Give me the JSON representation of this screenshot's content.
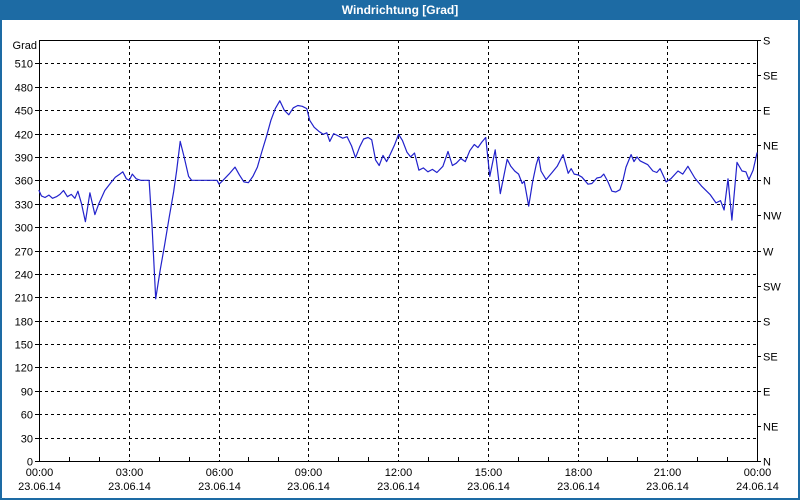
{
  "window": {
    "title": "Windrichtung [Grad]"
  },
  "colors": {
    "titlebar_bg": "#1d6ba4",
    "title_text": "#ffffff",
    "frame": "#1d6ba4",
    "plot_bg": "#ffffff",
    "grid": "#000000",
    "axis_text": "#000000",
    "line": "#2222cc"
  },
  "chart_data": {
    "type": "line",
    "title": "Windrichtung [Grad]",
    "ylabel_left": "Grad",
    "ylim": [
      0,
      540
    ],
    "y_left_tick_step": 30,
    "y_left_ticks": [
      510,
      480,
      450,
      420,
      390,
      360,
      330,
      300,
      270,
      240,
      210,
      180,
      150,
      120,
      90,
      60,
      30,
      0
    ],
    "y_right_ticks": [
      {
        "value": 540,
        "label": "S"
      },
      {
        "value": 495,
        "label": "SE"
      },
      {
        "value": 450,
        "label": "E"
      },
      {
        "value": 405,
        "label": "NE"
      },
      {
        "value": 360,
        "label": "N"
      },
      {
        "value": 315,
        "label": "NW"
      },
      {
        "value": 270,
        "label": "W"
      },
      {
        "value": 225,
        "label": "SW"
      },
      {
        "value": 180,
        "label": "S"
      },
      {
        "value": 135,
        "label": "SE"
      },
      {
        "value": 90,
        "label": "E"
      },
      {
        "value": 45,
        "label": "NE"
      },
      {
        "value": 0,
        "label": "N"
      }
    ],
    "xlim_hours": [
      0,
      24
    ],
    "x_minor_tick_hours": 1,
    "x_major_ticks": [
      {
        "hour": 0,
        "time": "00:00",
        "date": "23.06.14"
      },
      {
        "hour": 3,
        "time": "03:00",
        "date": "23.06.14"
      },
      {
        "hour": 6,
        "time": "06:00",
        "date": "23.06.14"
      },
      {
        "hour": 9,
        "time": "09:00",
        "date": "23.06.14"
      },
      {
        "hour": 12,
        "time": "12:00",
        "date": "23.06.14"
      },
      {
        "hour": 15,
        "time": "15:00",
        "date": "23.06.14"
      },
      {
        "hour": 18,
        "time": "18:00",
        "date": "23.06.14"
      },
      {
        "hour": 21,
        "time": "21:00",
        "date": "23.06.14"
      },
      {
        "hour": 24,
        "time": "00:00",
        "date": "24.06.14"
      }
    ],
    "grid": "dashed",
    "legend": "none",
    "series": [
      {
        "name": "Windrichtung",
        "unit": "Grad",
        "color": "#2222cc",
        "points": [
          [
            0.0,
            347
          ],
          [
            0.08,
            340
          ],
          [
            0.2,
            338
          ],
          [
            0.33,
            341
          ],
          [
            0.45,
            337
          ],
          [
            0.58,
            339
          ],
          [
            0.7,
            342
          ],
          [
            0.82,
            347
          ],
          [
            0.95,
            339
          ],
          [
            1.08,
            342
          ],
          [
            1.2,
            337
          ],
          [
            1.3,
            346
          ],
          [
            1.42,
            330
          ],
          [
            1.55,
            307
          ],
          [
            1.7,
            344
          ],
          [
            1.87,
            316
          ],
          [
            2.0,
            330
          ],
          [
            2.2,
            347
          ],
          [
            2.4,
            357
          ],
          [
            2.55,
            364
          ],
          [
            2.7,
            368
          ],
          [
            2.8,
            371
          ],
          [
            2.92,
            362
          ],
          [
            3.02,
            360
          ],
          [
            3.12,
            368
          ],
          [
            3.25,
            362
          ],
          [
            3.4,
            360
          ],
          [
            3.55,
            360
          ],
          [
            3.68,
            360
          ],
          [
            3.78,
            300
          ],
          [
            3.9,
            208
          ],
          [
            4.05,
            245
          ],
          [
            4.2,
            277
          ],
          [
            4.35,
            312
          ],
          [
            4.5,
            345
          ],
          [
            4.6,
            372
          ],
          [
            4.72,
            410
          ],
          [
            4.85,
            390
          ],
          [
            5.0,
            365
          ],
          [
            5.1,
            360
          ],
          [
            5.35,
            360
          ],
          [
            5.65,
            360
          ],
          [
            5.95,
            360
          ],
          [
            6.02,
            355
          ],
          [
            6.15,
            360
          ],
          [
            6.35,
            368
          ],
          [
            6.55,
            377
          ],
          [
            6.7,
            367
          ],
          [
            6.85,
            358
          ],
          [
            7.0,
            357
          ],
          [
            7.15,
            365
          ],
          [
            7.3,
            377
          ],
          [
            7.45,
            397
          ],
          [
            7.6,
            416
          ],
          [
            7.75,
            437
          ],
          [
            7.9,
            452
          ],
          [
            8.05,
            462
          ],
          [
            8.2,
            450
          ],
          [
            8.35,
            444
          ],
          [
            8.5,
            453
          ],
          [
            8.65,
            456
          ],
          [
            8.8,
            455
          ],
          [
            8.95,
            452
          ],
          [
            9.05,
            437
          ],
          [
            9.2,
            428
          ],
          [
            9.35,
            423
          ],
          [
            9.5,
            419
          ],
          [
            9.62,
            421
          ],
          [
            9.72,
            410
          ],
          [
            9.85,
            420
          ],
          [
            10.0,
            417
          ],
          [
            10.15,
            414
          ],
          [
            10.3,
            416
          ],
          [
            10.45,
            404
          ],
          [
            10.58,
            389
          ],
          [
            10.72,
            403
          ],
          [
            10.85,
            413
          ],
          [
            11.0,
            415
          ],
          [
            11.12,
            412
          ],
          [
            11.25,
            386
          ],
          [
            11.37,
            379
          ],
          [
            11.5,
            392
          ],
          [
            11.62,
            384
          ],
          [
            11.75,
            394
          ],
          [
            11.88,
            405
          ],
          [
            12.02,
            419
          ],
          [
            12.15,
            411
          ],
          [
            12.3,
            396
          ],
          [
            12.42,
            390
          ],
          [
            12.55,
            395
          ],
          [
            12.7,
            373
          ],
          [
            12.85,
            376
          ],
          [
            13.0,
            371
          ],
          [
            13.15,
            374
          ],
          [
            13.3,
            370
          ],
          [
            13.5,
            378
          ],
          [
            13.67,
            397
          ],
          [
            13.82,
            379
          ],
          [
            13.95,
            382
          ],
          [
            14.1,
            388
          ],
          [
            14.25,
            384
          ],
          [
            14.4,
            398
          ],
          [
            14.55,
            406
          ],
          [
            14.67,
            402
          ],
          [
            14.8,
            409
          ],
          [
            14.93,
            415
          ],
          [
            15.07,
            365
          ],
          [
            15.25,
            399
          ],
          [
            15.42,
            343
          ],
          [
            15.65,
            387
          ],
          [
            15.77,
            378
          ],
          [
            15.9,
            372
          ],
          [
            16.03,
            368
          ],
          [
            16.15,
            356
          ],
          [
            16.22,
            359
          ],
          [
            16.37,
            327
          ],
          [
            16.5,
            358
          ],
          [
            16.62,
            380
          ],
          [
            16.7,
            390
          ],
          [
            16.78,
            372
          ],
          [
            16.95,
            361
          ],
          [
            17.15,
            370
          ],
          [
            17.32,
            378
          ],
          [
            17.52,
            393
          ],
          [
            17.69,
            369
          ],
          [
            17.79,
            375
          ],
          [
            17.89,
            368
          ],
          [
            18.02,
            367
          ],
          [
            18.15,
            364
          ],
          [
            18.35,
            355
          ],
          [
            18.48,
            356
          ],
          [
            18.65,
            363
          ],
          [
            18.78,
            364
          ],
          [
            18.88,
            368
          ],
          [
            19.02,
            358
          ],
          [
            19.15,
            346
          ],
          [
            19.28,
            345
          ],
          [
            19.42,
            348
          ],
          [
            19.52,
            360
          ],
          [
            19.62,
            377
          ],
          [
            19.79,
            393
          ],
          [
            19.89,
            384
          ],
          [
            19.99,
            390
          ],
          [
            20.09,
            385
          ],
          [
            20.35,
            380
          ],
          [
            20.52,
            372
          ],
          [
            20.65,
            370
          ],
          [
            20.76,
            375
          ],
          [
            20.96,
            358
          ],
          [
            21.12,
            362
          ],
          [
            21.36,
            372
          ],
          [
            21.52,
            368
          ],
          [
            21.69,
            378
          ],
          [
            21.92,
            363
          ],
          [
            22.16,
            352
          ],
          [
            22.43,
            342
          ],
          [
            22.63,
            331
          ],
          [
            22.78,
            334
          ],
          [
            22.9,
            322
          ],
          [
            23.03,
            362
          ],
          [
            23.16,
            309
          ],
          [
            23.33,
            383
          ],
          [
            23.5,
            372
          ],
          [
            23.63,
            371
          ],
          [
            23.73,
            361
          ],
          [
            23.87,
            373
          ],
          [
            24.0,
            395
          ]
        ]
      }
    ]
  }
}
